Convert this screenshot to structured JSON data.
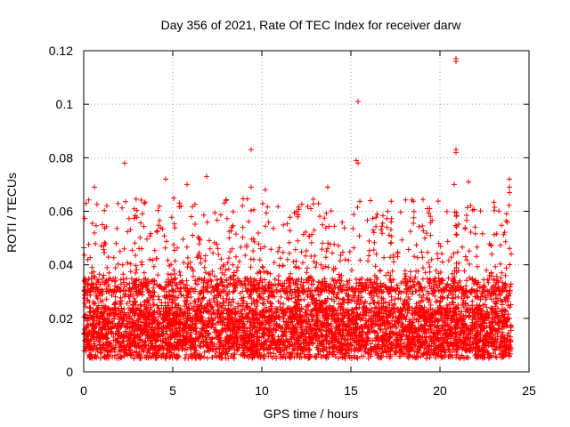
{
  "chart_data": {
    "type": "scatter",
    "title": "Day 356 of 2021, Rate Of TEC Index for receiver darw",
    "xlabel": "GPS time / hours",
    "ylabel": "ROTI / TECUs",
    "xlim": [
      0,
      25
    ],
    "ylim": [
      0,
      0.12
    ],
    "x_ticks": [
      0,
      5,
      10,
      15,
      20,
      25
    ],
    "x_tick_labels": [
      "0",
      "5",
      "10",
      "15",
      "20",
      "25"
    ],
    "y_ticks": [
      0,
      0.02,
      0.04,
      0.06,
      0.08,
      0.1,
      0.12
    ],
    "y_tick_labels": [
      "0",
      "0.02",
      "0.04",
      "0.06",
      "0.08",
      "0.1",
      "0.12"
    ],
    "grid": true,
    "marker": "plus",
    "series_color": "#ff0000",
    "data_x_range": [
      0,
      24
    ],
    "bulk_range": [
      0.005,
      0.035
    ],
    "outliers": [
      {
        "x": 0.6,
        "y": 0.069
      },
      {
        "x": 2.3,
        "y": 0.078
      },
      {
        "x": 4.6,
        "y": 0.072
      },
      {
        "x": 5.8,
        "y": 0.07
      },
      {
        "x": 6.9,
        "y": 0.073
      },
      {
        "x": 9.4,
        "y": 0.083
      },
      {
        "x": 9.4,
        "y": 0.069
      },
      {
        "x": 10.2,
        "y": 0.068
      },
      {
        "x": 13.7,
        "y": 0.069
      },
      {
        "x": 15.4,
        "y": 0.101
      },
      {
        "x": 15.3,
        "y": 0.079
      },
      {
        "x": 15.4,
        "y": 0.078
      },
      {
        "x": 16.1,
        "y": 0.064
      },
      {
        "x": 19.3,
        "y": 0.061
      },
      {
        "x": 20.9,
        "y": 0.117
      },
      {
        "x": 20.9,
        "y": 0.116
      },
      {
        "x": 20.9,
        "y": 0.083
      },
      {
        "x": 20.9,
        "y": 0.082
      },
      {
        "x": 20.8,
        "y": 0.07
      },
      {
        "x": 21.6,
        "y": 0.071
      },
      {
        "x": 23.9,
        "y": 0.072
      },
      {
        "x": 23.9,
        "y": 0.069
      },
      {
        "x": 23.9,
        "y": 0.067
      },
      {
        "x": 24.0,
        "y": 0.044
      }
    ]
  }
}
